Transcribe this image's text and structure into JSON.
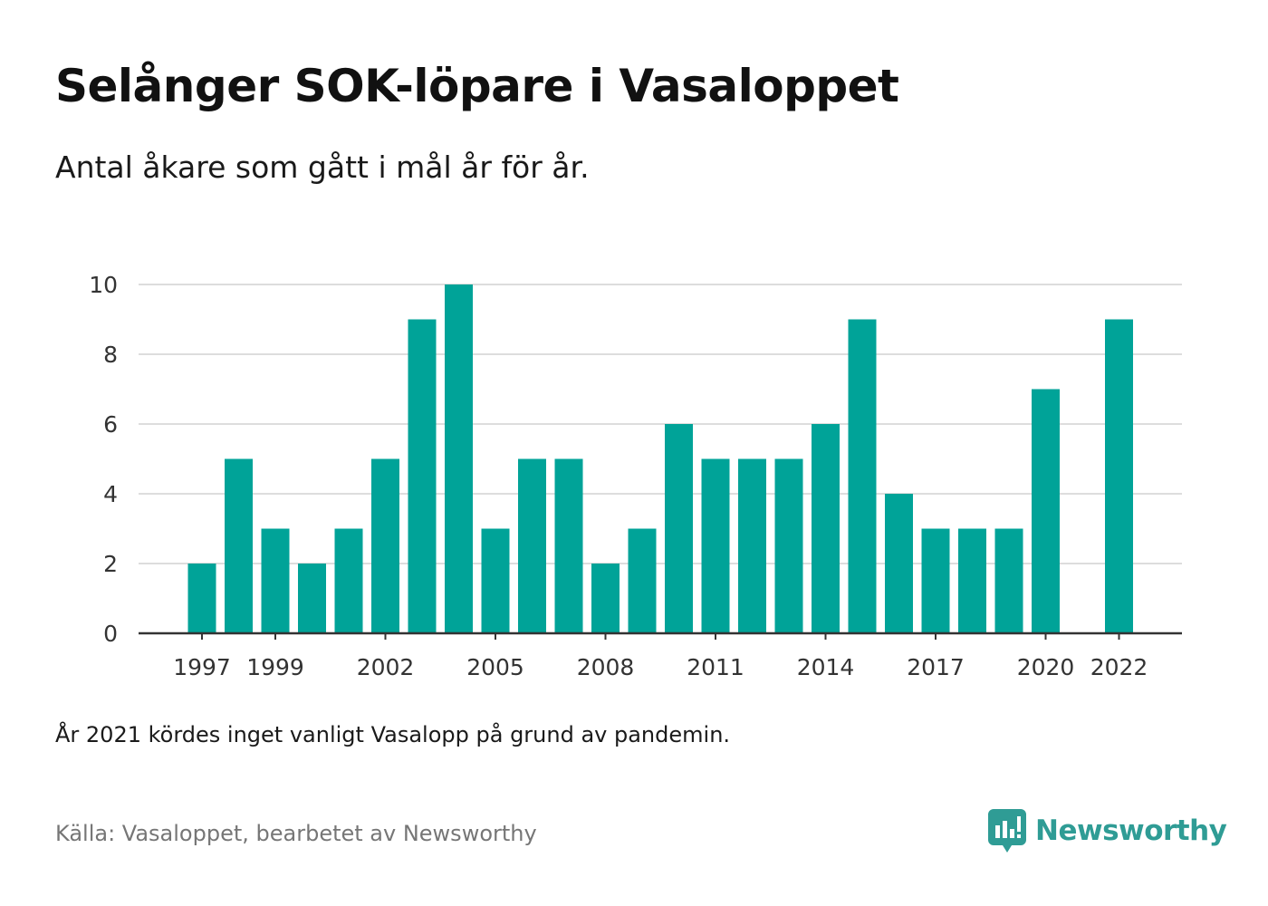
{
  "header": {
    "title": "Selånger SOK-löpare i Vasaloppet",
    "subtitle": "Antal åkare som gått i mål år för år."
  },
  "footer": {
    "note": "År 2021 kördes inget vanligt Vasalopp på grund av pandemin.",
    "source": "Källa: Vasaloppet, bearbetet av Newsworthy",
    "logo_text": "Newsworthy"
  },
  "colors": {
    "bar": "#00a398",
    "grid": "#dddddd",
    "axis": "#333333",
    "brand": "#2f9c95"
  },
  "chart_data": {
    "type": "bar",
    "categories": [
      "1997",
      "1998",
      "1999",
      "2000",
      "2001",
      "2002",
      "2003",
      "2004",
      "2005",
      "2006",
      "2007",
      "2008",
      "2009",
      "2010",
      "2011",
      "2012",
      "2013",
      "2014",
      "2015",
      "2016",
      "2017",
      "2018",
      "2019",
      "2020",
      "2021",
      "2022"
    ],
    "values": [
      2,
      5,
      3,
      2,
      3,
      5,
      9,
      10,
      3,
      5,
      5,
      2,
      3,
      6,
      5,
      5,
      5,
      6,
      9,
      4,
      3,
      3,
      3,
      7,
      null,
      9
    ],
    "x_tick_labels": [
      "1997",
      "1999",
      "2002",
      "2005",
      "2008",
      "2011",
      "2014",
      "2017",
      "2020",
      "2022"
    ],
    "y_ticks": [
      0,
      2,
      4,
      6,
      8,
      10
    ],
    "ylim": [
      0,
      10
    ],
    "grid": true,
    "legend": "none",
    "xlabel": "",
    "ylabel": ""
  }
}
